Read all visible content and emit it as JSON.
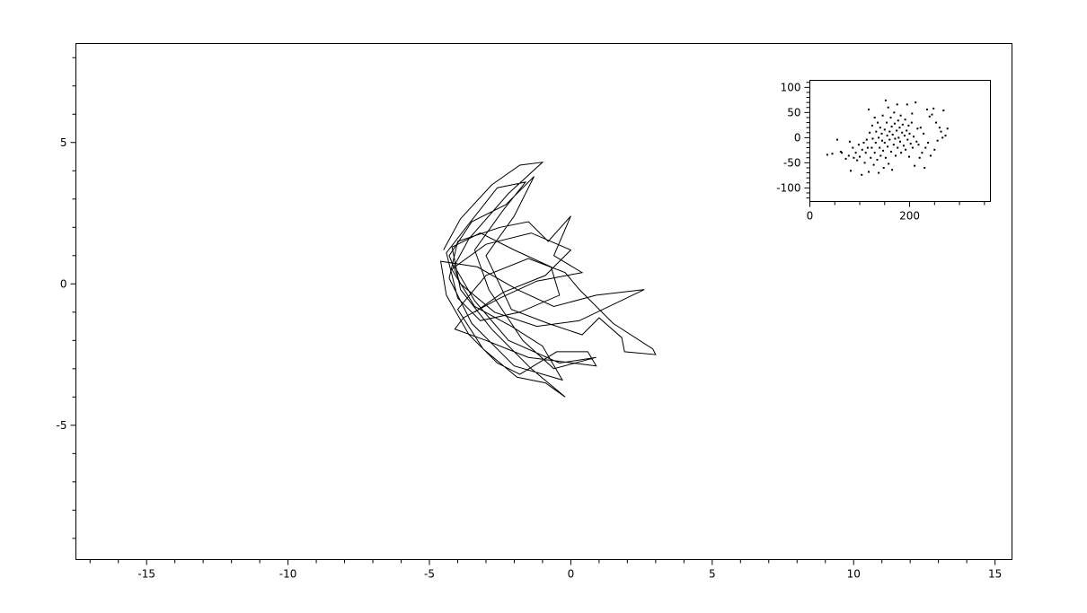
{
  "chart_data": [
    {
      "type": "line",
      "title": "",
      "xlabel": "",
      "ylabel": "",
      "xlim": [
        -17.5,
        15.6
      ],
      "ylim": [
        -9.75,
        8.5
      ],
      "grid": false,
      "color": "#000000",
      "x_ticks": [
        "-15",
        "-10",
        "-5",
        "0",
        "5",
        "10",
        "15"
      ],
      "x_tick_values": [
        -15,
        -10,
        -5,
        0,
        5,
        10,
        15
      ],
      "y_ticks": [
        "5",
        "0",
        "-5"
      ],
      "y_tick_values": [
        5,
        0,
        -5
      ],
      "points": [
        [
          -4.5,
          1.2
        ],
        [
          -3.9,
          2.3
        ],
        [
          -2.8,
          3.5
        ],
        [
          -1.8,
          4.2
        ],
        [
          -1.0,
          4.3
        ],
        [
          -2.2,
          3.2
        ],
        [
          -3.6,
          1.6
        ],
        [
          -4.2,
          0.5
        ],
        [
          -3.4,
          -0.8
        ],
        [
          -2.1,
          -1.5
        ],
        [
          -1.0,
          -2.2
        ],
        [
          -0.3,
          -3.4
        ],
        [
          -2.0,
          -2.9
        ],
        [
          -3.5,
          -1.4
        ],
        [
          -4.3,
          0.2
        ],
        [
          -4.0,
          1.5
        ],
        [
          -2.5,
          2.0
        ],
        [
          -1.5,
          2.2
        ],
        [
          -0.8,
          1.5
        ],
        [
          0.0,
          2.4
        ],
        [
          -0.6,
          1.0
        ],
        [
          0.4,
          0.4
        ],
        [
          -1.2,
          0.1
        ],
        [
          -2.5,
          -0.5
        ],
        [
          -3.8,
          -1.2
        ],
        [
          -4.1,
          -1.6
        ],
        [
          -3.0,
          -2.0
        ],
        [
          -1.5,
          -2.6
        ],
        [
          0.9,
          -2.9
        ],
        [
          0.6,
          -2.4
        ],
        [
          -0.5,
          -2.4
        ],
        [
          -1.8,
          -3.2
        ],
        [
          -2.6,
          -2.8
        ],
        [
          -3.6,
          -1.8
        ],
        [
          -4.4,
          -0.4
        ],
        [
          -4.6,
          0.8
        ],
        [
          -3.3,
          0.6
        ],
        [
          -1.9,
          -0.2
        ],
        [
          -0.6,
          -0.8
        ],
        [
          0.9,
          -0.4
        ],
        [
          2.6,
          -0.2
        ],
        [
          0.3,
          -1.3
        ],
        [
          -1.2,
          -1.5
        ],
        [
          -2.7,
          -1.0
        ],
        [
          -3.9,
          0.0
        ],
        [
          -4.3,
          1.0
        ],
        [
          -3.5,
          2.2
        ],
        [
          -2.3,
          2.8
        ],
        [
          -1.3,
          3.8
        ],
        [
          -2.0,
          2.4
        ],
        [
          -3.0,
          1.0
        ],
        [
          -2.1,
          -0.9
        ],
        [
          -0.8,
          -1.4
        ],
        [
          0.4,
          -1.8
        ],
        [
          1.0,
          -1.2
        ],
        [
          1.8,
          -1.9
        ],
        [
          1.9,
          -2.4
        ],
        [
          3.0,
          -2.5
        ],
        [
          2.9,
          -2.3
        ],
        [
          1.5,
          -1.4
        ],
        [
          0.3,
          -0.2
        ],
        [
          -0.2,
          0.4
        ],
        [
          -1.5,
          0.9
        ],
        [
          -3.0,
          0.3
        ],
        [
          -4.0,
          -0.9
        ],
        [
          -3.1,
          -2.3
        ],
        [
          -1.9,
          -3.3
        ],
        [
          -0.9,
          -3.5
        ],
        [
          -0.2,
          -4.0
        ],
        [
          -1.4,
          -3.0
        ],
        [
          -2.8,
          -1.6
        ],
        [
          -3.9,
          -0.2
        ],
        [
          -4.2,
          1.3
        ],
        [
          -3.2,
          1.8
        ],
        [
          -2.0,
          1.2
        ],
        [
          -0.7,
          0.6
        ],
        [
          -0.4,
          -0.4
        ],
        [
          -1.8,
          -1.0
        ],
        [
          -3.2,
          -1.3
        ],
        [
          -4.0,
          -0.5
        ],
        [
          -4.4,
          1.1
        ],
        [
          -3.7,
          2.0
        ],
        [
          -2.6,
          3.4
        ],
        [
          -1.6,
          3.6
        ],
        [
          -2.4,
          2.6
        ],
        [
          -3.4,
          1.2
        ],
        [
          -2.9,
          -0.2
        ],
        [
          -1.7,
          -2.0
        ],
        [
          -0.6,
          -3.0
        ],
        [
          0.9,
          -2.6
        ],
        [
          -0.4,
          -2.8
        ],
        [
          -2.2,
          -2.0
        ],
        [
          -3.4,
          -0.6
        ],
        [
          -4.1,
          0.6
        ],
        [
          -3.0,
          1.4
        ],
        [
          -1.4,
          1.8
        ],
        [
          0.0,
          1.2
        ],
        [
          -0.9,
          0.3
        ],
        [
          -2.4,
          -0.3
        ],
        [
          -3.4,
          -1.0
        ]
      ]
    },
    {
      "type": "scatter",
      "title": "",
      "xlabel": "",
      "ylabel": "",
      "xlim": [
        0,
        362
      ],
      "ylim": [
        -127,
        114
      ],
      "grid": false,
      "color": "#000000",
      "x_ticks": [
        "0",
        "200"
      ],
      "x_tick_values": [
        0,
        200
      ],
      "y_ticks": [
        "100",
        "50",
        "0",
        "-50",
        "-100"
      ],
      "y_tick_values": [
        100,
        50,
        0,
        -50,
        -100
      ],
      "points": [
        [
          35,
          -34
        ],
        [
          45,
          -32
        ],
        [
          55,
          -4
        ],
        [
          62,
          -28
        ],
        [
          64,
          -30
        ],
        [
          72,
          -42
        ],
        [
          78,
          -36
        ],
        [
          80,
          -8
        ],
        [
          82,
          -66
        ],
        [
          86,
          -20
        ],
        [
          88,
          -40
        ],
        [
          92,
          -30
        ],
        [
          95,
          -45
        ],
        [
          98,
          -14
        ],
        [
          100,
          -38
        ],
        [
          104,
          -74
        ],
        [
          105,
          -24
        ],
        [
          108,
          -10
        ],
        [
          110,
          -50
        ],
        [
          112,
          -30
        ],
        [
          114,
          -4
        ],
        [
          116,
          -20
        ],
        [
          118,
          56
        ],
        [
          118,
          -68
        ],
        [
          120,
          10
        ],
        [
          122,
          -40
        ],
        [
          124,
          -20
        ],
        [
          125,
          24
        ],
        [
          126,
          -2
        ],
        [
          128,
          -54
        ],
        [
          130,
          40
        ],
        [
          130,
          -30
        ],
        [
          132,
          -10
        ],
        [
          133,
          12
        ],
        [
          135,
          -44
        ],
        [
          136,
          30
        ],
        [
          138,
          -70
        ],
        [
          138,
          0
        ],
        [
          140,
          -20
        ],
        [
          141,
          20
        ],
        [
          142,
          -36
        ],
        [
          144,
          8
        ],
        [
          145,
          -6
        ],
        [
          146,
          44
        ],
        [
          147,
          -26
        ],
        [
          148,
          -60
        ],
        [
          150,
          16
        ],
        [
          150,
          -10
        ],
        [
          152,
          74
        ],
        [
          152,
          -40
        ],
        [
          154,
          30
        ],
        [
          155,
          4
        ],
        [
          156,
          -18
        ],
        [
          157,
          60
        ],
        [
          158,
          -52
        ],
        [
          160,
          12
        ],
        [
          160,
          -4
        ],
        [
          162,
          40
        ],
        [
          163,
          -28
        ],
        [
          164,
          22
        ],
        [
          165,
          -64
        ],
        [
          166,
          6
        ],
        [
          168,
          -14
        ],
        [
          169,
          50
        ],
        [
          170,
          28
        ],
        [
          171,
          -2
        ],
        [
          172,
          -36
        ],
        [
          174,
          14
        ],
        [
          175,
          66
        ],
        [
          176,
          -20
        ],
        [
          177,
          34
        ],
        [
          178,
          0
        ],
        [
          180,
          20
        ],
        [
          181,
          -8
        ],
        [
          182,
          44
        ],
        [
          183,
          -30
        ],
        [
          185,
          10
        ],
        [
          186,
          26
        ],
        [
          188,
          -16
        ],
        [
          190,
          4
        ],
        [
          191,
          36
        ],
        [
          192,
          -24
        ],
        [
          194,
          14
        ],
        [
          195,
          66
        ],
        [
          196,
          -4
        ],
        [
          198,
          24
        ],
        [
          199,
          -38
        ],
        [
          200,
          8
        ],
        [
          202,
          -12
        ],
        [
          204,
          30
        ],
        [
          205,
          48
        ],
        [
          206,
          -20
        ],
        [
          208,
          2
        ],
        [
          210,
          -56
        ],
        [
          212,
          70
        ],
        [
          214,
          -8
        ],
        [
          216,
          18
        ],
        [
          218,
          -14
        ],
        [
          220,
          -40
        ],
        [
          222,
          20
        ],
        [
          225,
          -30
        ],
        [
          228,
          8
        ],
        [
          230,
          -60
        ],
        [
          232,
          -20
        ],
        [
          235,
          56
        ],
        [
          237,
          -10
        ],
        [
          240,
          42
        ],
        [
          242,
          -36
        ],
        [
          245,
          46
        ],
        [
          248,
          58
        ],
        [
          250,
          -24
        ],
        [
          253,
          30
        ],
        [
          256,
          -6
        ],
        [
          260,
          20
        ],
        [
          263,
          12
        ],
        [
          266,
          0
        ],
        [
          268,
          54
        ],
        [
          272,
          4
        ],
        [
          276,
          18
        ]
      ]
    }
  ]
}
